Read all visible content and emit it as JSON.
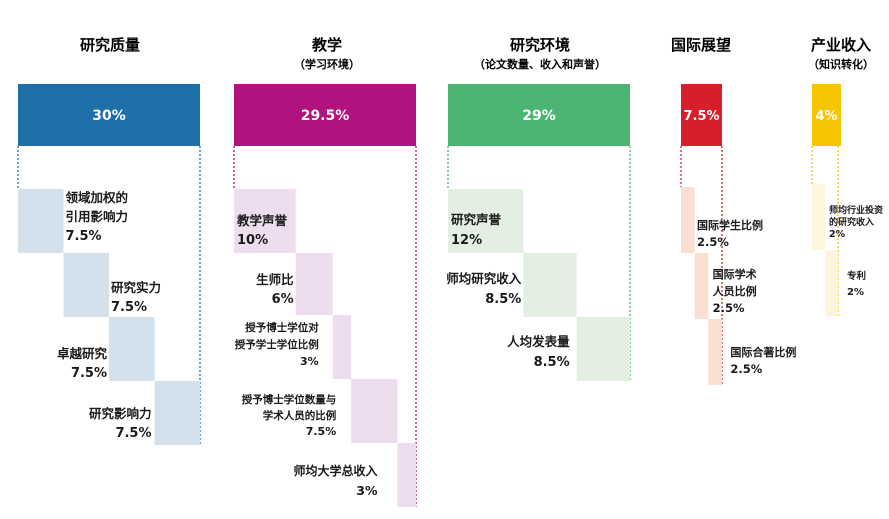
{
  "chart_data": {
    "type": "waterfall",
    "unit": "%",
    "pillars": [
      {
        "key": "teaching_quality",
        "title": "研究质量",
        "subtitle": "",
        "value_label": "30%",
        "value": 30,
        "color": "#1F6FA8",
        "sub_color": "#D3E1EC",
        "items": [
          {
            "label_lines": [
              "领域加权的",
              "引用影响力"
            ],
            "value_label": "7.5%",
            "value": 7.5
          },
          {
            "label_lines": [
              "研究实力"
            ],
            "value_label": "7.5%",
            "value": 7.5
          },
          {
            "label_lines": [
              "卓越研究"
            ],
            "value_label": "7.5%",
            "value": 7.5
          },
          {
            "label_lines": [
              "研究影响力"
            ],
            "value_label": "7.5%",
            "value": 7.5
          }
        ]
      },
      {
        "key": "teaching",
        "title": "教学",
        "subtitle": "（学习环境）",
        "value_label": "29.5%",
        "value": 29.5,
        "color": "#B0137E",
        "sub_color": "#EEDDEF",
        "items": [
          {
            "label_lines": [
              "教学声誉"
            ],
            "value_label": "10%",
            "value": 10
          },
          {
            "label_lines": [
              "生师比"
            ],
            "value_label": "6%",
            "value": 6
          },
          {
            "label_lines": [
              "授予博士学位对",
              "授予学士学位比例"
            ],
            "value_label": "3%",
            "value": 3
          },
          {
            "label_lines": [
              "授予博士学位数量与",
              "学术人员的比例"
            ],
            "value_label": "7.5%",
            "value": 7.5
          },
          {
            "label_lines": [
              "师均大学总收入"
            ],
            "value_label": "3%",
            "value": 3
          }
        ]
      },
      {
        "key": "research_env",
        "title": "研究环境",
        "subtitle": "（论文数量、收入和声誉）",
        "value_label": "29%",
        "value": 29,
        "color": "#4CB574",
        "sub_color": "#E2EFE2",
        "items": [
          {
            "label_lines": [
              "研究声誉"
            ],
            "value_label": "12%",
            "value": 12
          },
          {
            "label_lines": [
              "师均研究收入"
            ],
            "value_label": "8.5%",
            "value": 8.5
          },
          {
            "label_lines": [
              "人均发表量"
            ],
            "value_label": "8.5%",
            "value": 8.5
          }
        ]
      },
      {
        "key": "international",
        "title": "国际展望",
        "subtitle": "",
        "value_label": "7.5%",
        "value": 7.5,
        "color": "#D71F2B",
        "sub_color": "#F9DFD2",
        "items": [
          {
            "label_lines": [
              "国际学生比例"
            ],
            "value_label": "2.5%",
            "value": 2.5
          },
          {
            "label_lines": [
              "国际学术",
              "人员比例"
            ],
            "value_label": "2.5%",
            "value": 2.5
          },
          {
            "label_lines": [
              "国际合著比例"
            ],
            "value_label": "2.5%",
            "value": 2.5
          }
        ]
      },
      {
        "key": "industry",
        "title": "产业收入",
        "subtitle": "（知识转化）",
        "value_label": "4%",
        "value": 4,
        "color": "#F7C600",
        "sub_color": "#FDF6DC",
        "items": [
          {
            "label_lines": [
              "师均行业投资",
              "的研究收入"
            ],
            "value_label": "2%",
            "value": 2
          },
          {
            "label_lines": [
              "专利"
            ],
            "value_label": "2%",
            "value": 2
          }
        ]
      }
    ]
  }
}
